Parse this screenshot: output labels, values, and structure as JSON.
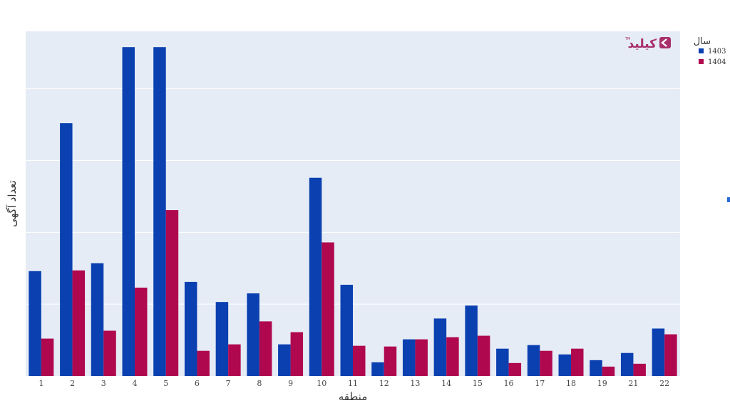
{
  "chart_data": {
    "type": "bar",
    "xlabel": "منطقه",
    "ylabel": "تعداد آگهی",
    "categories": [
      "1",
      "2",
      "3",
      "4",
      "5",
      "6",
      "7",
      "8",
      "9",
      "10",
      "11",
      "12",
      "13",
      "14",
      "15",
      "16",
      "17",
      "18",
      "19",
      "21",
      "22"
    ],
    "series": [
      {
        "name": "1403",
        "color": "#0b40b0",
        "values": [
          146,
          352,
          157,
          458,
          458,
          131,
          103,
          115,
          44,
          276,
          127,
          19,
          51,
          80,
          98,
          38,
          43,
          30,
          22,
          32,
          66
        ]
      },
      {
        "name": "1404",
        "color": "#b0084f",
        "values": [
          52,
          147,
          63,
          123,
          231,
          35,
          44,
          76,
          61,
          186,
          42,
          41,
          51,
          54,
          56,
          18,
          35,
          38,
          13,
          17,
          58
        ]
      }
    ],
    "ylim": [
      0,
      480
    ],
    "grid": true,
    "legend": {
      "title": "سال",
      "position": "top-right"
    }
  },
  "logo": {
    "text": "کیلید",
    "tm": "TM"
  }
}
